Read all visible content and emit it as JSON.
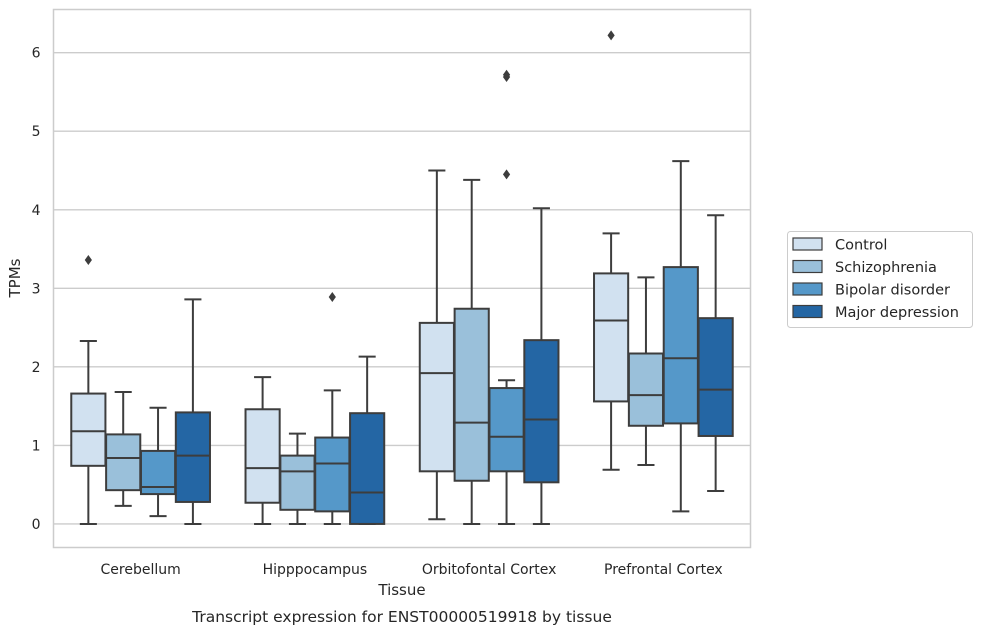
{
  "chart_data": {
    "type": "boxplot",
    "xlabel": "Tissue",
    "ylabel": "TPMs",
    "caption": "Transcript expression for ENST00000519918 by tissue",
    "categories": [
      "Cerebellum",
      "Hipppocampus",
      "Orbitofontal Cortex",
      "Prefrontal Cortex"
    ],
    "ylim": [
      -0.3,
      6.55
    ],
    "yticks": [
      "0",
      "1",
      "2",
      "3",
      "4",
      "5",
      "6"
    ],
    "grid": true,
    "legend_position": "right",
    "series": [
      {
        "name": "Control",
        "color": "#d1e1f0",
        "boxes": [
          {
            "whisker_low": 0.0,
            "q1": 0.74,
            "median": 1.18,
            "q3": 1.66,
            "whisker_high": 2.33,
            "outliers": [
              3.36
            ]
          },
          {
            "whisker_low": 0.0,
            "q1": 0.27,
            "median": 0.71,
            "q3": 1.46,
            "whisker_high": 1.87,
            "outliers": []
          },
          {
            "whisker_low": 0.06,
            "q1": 0.67,
            "median": 1.92,
            "q3": 2.56,
            "whisker_high": 4.5,
            "outliers": []
          },
          {
            "whisker_low": 0.69,
            "q1": 1.56,
            "median": 2.59,
            "q3": 3.19,
            "whisker_high": 3.7,
            "outliers": [
              6.22
            ]
          }
        ]
      },
      {
        "name": "Schizophrenia",
        "color": "#9ac0da",
        "boxes": [
          {
            "whisker_low": 0.23,
            "q1": 0.43,
            "median": 0.84,
            "q3": 1.14,
            "whisker_high": 1.68,
            "outliers": []
          },
          {
            "whisker_low": 0.0,
            "q1": 0.18,
            "median": 0.67,
            "q3": 0.87,
            "whisker_high": 1.15,
            "outliers": []
          },
          {
            "whisker_low": 0.0,
            "q1": 0.55,
            "median": 1.29,
            "q3": 2.74,
            "whisker_high": 4.38,
            "outliers": []
          },
          {
            "whisker_low": 0.75,
            "q1": 1.25,
            "median": 1.64,
            "q3": 2.17,
            "whisker_high": 3.14,
            "outliers": []
          }
        ]
      },
      {
        "name": "Bipolar disorder",
        "color": "#5598c9",
        "boxes": [
          {
            "whisker_low": 0.1,
            "q1": 0.38,
            "median": 0.47,
            "q3": 0.93,
            "whisker_high": 1.48,
            "outliers": []
          },
          {
            "whisker_low": 0.0,
            "q1": 0.16,
            "median": 0.77,
            "q3": 1.1,
            "whisker_high": 1.7,
            "outliers": [
              2.89
            ]
          },
          {
            "whisker_low": 0.0,
            "q1": 0.67,
            "median": 1.11,
            "q3": 1.73,
            "whisker_high": 1.83,
            "outliers": [
              4.45,
              5.69,
              5.72
            ]
          },
          {
            "whisker_low": 0.16,
            "q1": 1.28,
            "median": 2.11,
            "q3": 3.27,
            "whisker_high": 4.62,
            "outliers": []
          }
        ]
      },
      {
        "name": "Major depression",
        "color": "#2466a4",
        "boxes": [
          {
            "whisker_low": 0.0,
            "q1": 0.28,
            "median": 0.87,
            "q3": 1.42,
            "whisker_high": 2.86,
            "outliers": []
          },
          {
            "whisker_low": 0.0,
            "q1": 0.0,
            "median": 0.4,
            "q3": 1.41,
            "whisker_high": 2.13,
            "outliers": []
          },
          {
            "whisker_low": 0.0,
            "q1": 0.53,
            "median": 1.33,
            "q3": 2.34,
            "whisker_high": 4.02,
            "outliers": []
          },
          {
            "whisker_low": 0.42,
            "q1": 1.12,
            "median": 1.71,
            "q3": 2.62,
            "whisker_high": 3.93,
            "outliers": []
          }
        ]
      }
    ]
  }
}
